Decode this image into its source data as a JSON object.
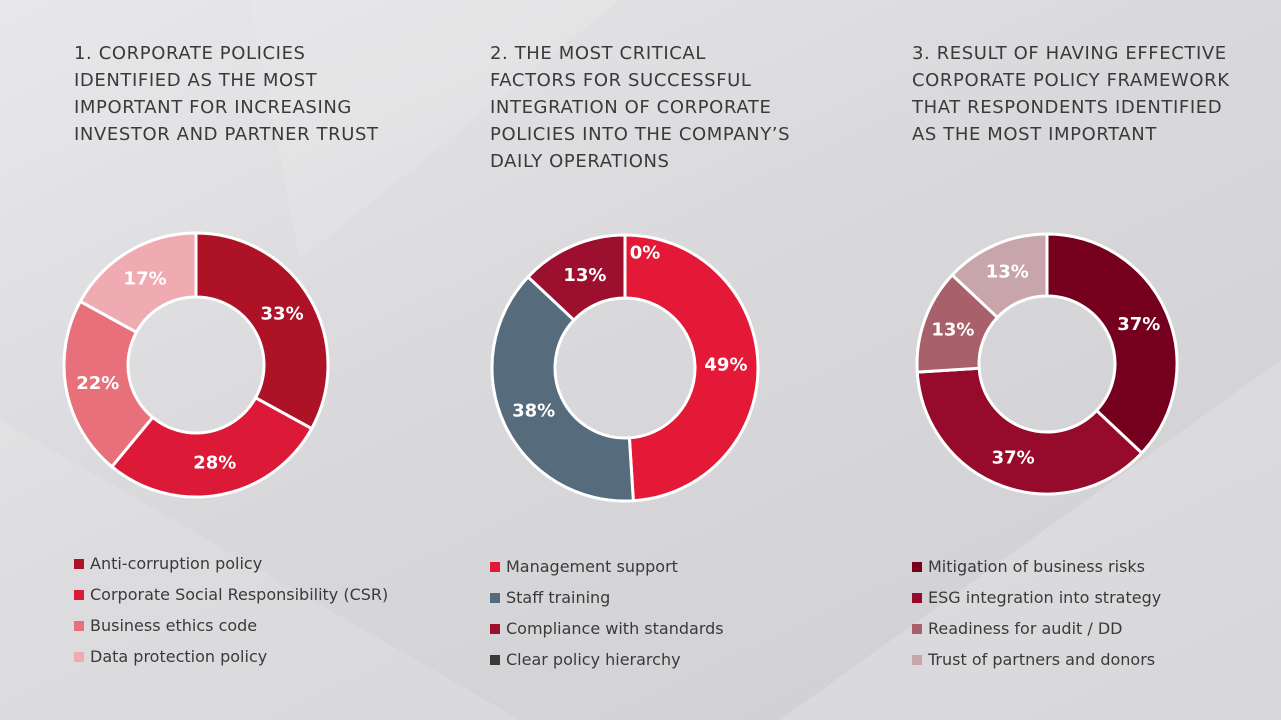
{
  "chart_data": [
    {
      "type": "pie",
      "title": "1. CORPORATE POLICIES IDENTIFIED AS THE MOST IMPORTANT FOR INCREASING INVESTOR AND PARTNER TRUST",
      "title_lines": [
        "1. CORPORATE POLICIES",
        "IDENTIFIED AS THE MOST",
        "IMPORTANT FOR INCREASING",
        "INVESTOR AND PARTNER TRUST"
      ],
      "categories": [
        "Anti-corruption policy",
        "Corporate Social Responsibility (CSR)",
        "Business ethics code",
        "Data protection policy"
      ],
      "values": [
        33,
        28,
        22,
        17
      ],
      "labels": [
        "33%",
        "28%",
        "22%",
        "17%"
      ],
      "colors": [
        "#ad1227",
        "#dc1a38",
        "#e8707a",
        "#f0aab2"
      ],
      "label_colors": [
        "#ffffff",
        "#ffffff",
        "#ffffff",
        "#ffffff"
      ],
      "legend_position": "bottom"
    },
    {
      "type": "pie",
      "title": "2. THE MOST CRITICAL FACTORS FOR SUCCESSFUL INTEGRATION OF CORPORATE POLICIES INTO THE COMPANY’S DAILY OPERATIONS",
      "title_lines": [
        "2. THE MOST CRITICAL",
        "FACTORS FOR SUCCESSFUL",
        "INTEGRATION OF CORPORATE",
        "POLICIES INTO THE COMPANY’S",
        "DAILY OPERATIONS"
      ],
      "categories": [
        "Management support",
        "Staff training",
        "Compliance with standards",
        "Clear policy hierarchy"
      ],
      "values": [
        49,
        38,
        13,
        0
      ],
      "labels": [
        "49%",
        "38%",
        "13%",
        "0%"
      ],
      "colors": [
        "#e31937",
        "#566b7c",
        "#9c0f2e",
        "#3a3a3a"
      ],
      "label_colors": [
        "#ffffff",
        "#ffffff",
        "#ffffff",
        "#ffffff"
      ],
      "legend_position": "bottom"
    },
    {
      "type": "pie",
      "title": "3. RESULT OF HAVING EFFECTIVE CORPORATE POLICY FRAMEWORK THAT RESPONDENTS IDENTIFIED AS THE MOST IMPORTANT",
      "title_lines": [
        "3. RESULT OF HAVING EFFECTIVE",
        "CORPORATE POLICY FRAMEWORK",
        "THAT RESPONDENTS IDENTIFIED",
        "AS THE MOST IMPORTANT"
      ],
      "categories": [
        "Mitigation of business risks",
        "ESG integration into strategy",
        "Readiness for audit / DD",
        "Trust of partners and donors"
      ],
      "values": [
        37,
        37,
        13,
        13
      ],
      "labels": [
        "37%",
        "37%",
        "13%",
        "13%"
      ],
      "colors": [
        "#75001e",
        "#960a2c",
        "#a8606a",
        "#c8a5aa"
      ],
      "label_colors": [
        "#ffffff",
        "#ffffff",
        "#ffffff",
        "#ffffff"
      ],
      "legend_position": "bottom"
    }
  ]
}
